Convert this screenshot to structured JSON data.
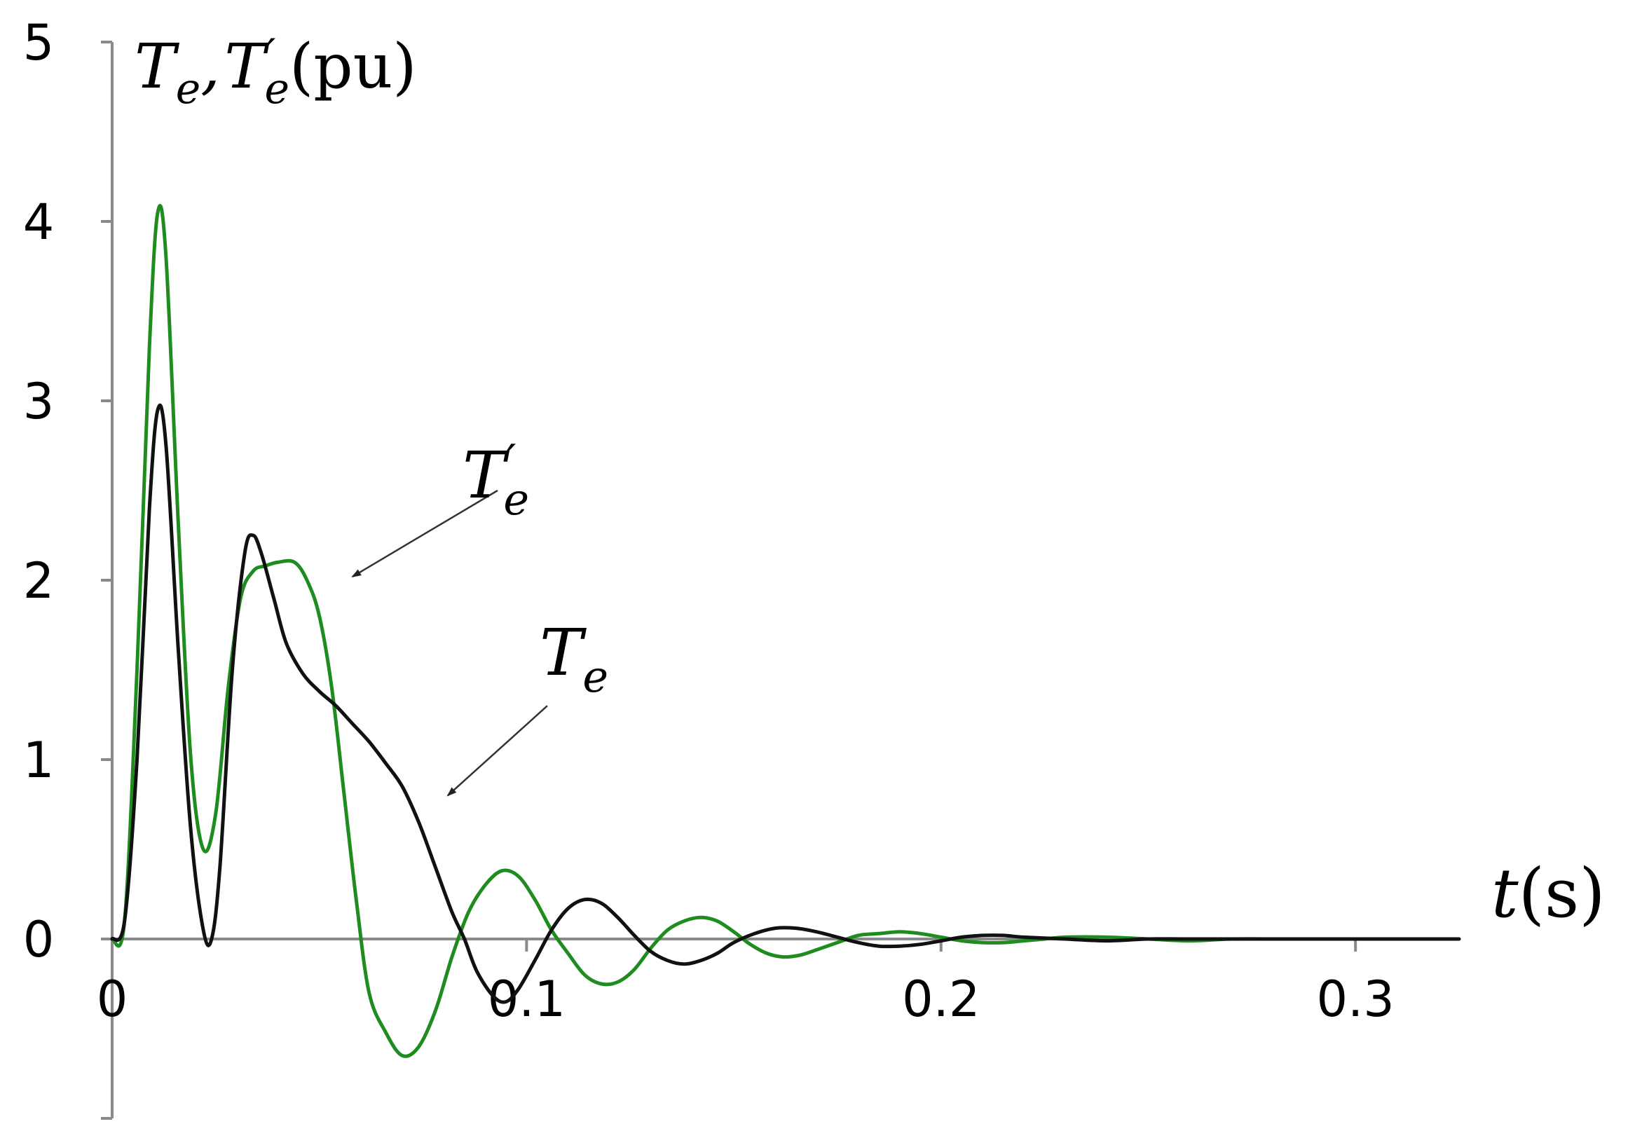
{
  "chart_data": {
    "type": "line",
    "title": "",
    "ylabel": {
      "main": "T",
      "sub1": "e",
      "sep": ",",
      "main2": "T",
      "prime": "′",
      "sub2": "e",
      "unit": "(pu)"
    },
    "xlabel": {
      "main": "t",
      "unit": "(s)"
    },
    "xlim": [
      0,
      0.325
    ],
    "ylim": [
      -1,
      5
    ],
    "x_ticks": [
      {
        "value": 0,
        "label": "0"
      },
      {
        "value": 0.1,
        "label": "0.1"
      },
      {
        "value": 0.2,
        "label": "0.2"
      },
      {
        "value": 0.3,
        "label": "0.3"
      }
    ],
    "y_ticks": [
      {
        "value": 0,
        "label": "0"
      },
      {
        "value": 1,
        "label": "1"
      },
      {
        "value": 2,
        "label": "2"
      },
      {
        "value": 3,
        "label": "3"
      },
      {
        "value": 4,
        "label": "4"
      },
      {
        "value": 5,
        "label": "5"
      }
    ],
    "grid": false,
    "series": [
      {
        "id": "Te_prime",
        "color": "#1e8c1e",
        "points": [
          [
            0,
            0
          ],
          [
            0.003,
            0.1
          ],
          [
            0.006,
            1.5
          ],
          [
            0.009,
            3.3
          ],
          [
            0.011,
            4.05
          ],
          [
            0.013,
            3.8
          ],
          [
            0.016,
            2.3
          ],
          [
            0.019,
            1.0
          ],
          [
            0.022,
            0.5
          ],
          [
            0.025,
            0.7
          ],
          [
            0.028,
            1.4
          ],
          [
            0.031,
            1.9
          ],
          [
            0.034,
            2.05
          ],
          [
            0.037,
            2.08
          ],
          [
            0.04,
            2.1
          ],
          [
            0.044,
            2.1
          ],
          [
            0.047,
            2.0
          ],
          [
            0.05,
            1.8
          ],
          [
            0.053,
            1.4
          ],
          [
            0.056,
            0.8
          ],
          [
            0.059,
            0.2
          ],
          [
            0.062,
            -0.3
          ],
          [
            0.066,
            -0.52
          ],
          [
            0.07,
            -0.65
          ],
          [
            0.074,
            -0.6
          ],
          [
            0.078,
            -0.4
          ],
          [
            0.082,
            -0.1
          ],
          [
            0.086,
            0.15
          ],
          [
            0.09,
            0.3
          ],
          [
            0.094,
            0.38
          ],
          [
            0.098,
            0.35
          ],
          [
            0.102,
            0.22
          ],
          [
            0.106,
            0.05
          ],
          [
            0.11,
            -0.08
          ],
          [
            0.114,
            -0.2
          ],
          [
            0.118,
            -0.25
          ],
          [
            0.122,
            -0.24
          ],
          [
            0.126,
            -0.17
          ],
          [
            0.13,
            -0.05
          ],
          [
            0.134,
            0.05
          ],
          [
            0.138,
            0.1
          ],
          [
            0.142,
            0.12
          ],
          [
            0.146,
            0.1
          ],
          [
            0.15,
            0.04
          ],
          [
            0.154,
            -0.03
          ],
          [
            0.158,
            -0.08
          ],
          [
            0.162,
            -0.1
          ],
          [
            0.166,
            -0.09
          ],
          [
            0.17,
            -0.06
          ],
          [
            0.175,
            -0.02
          ],
          [
            0.18,
            0.02
          ],
          [
            0.185,
            0.03
          ],
          [
            0.19,
            0.04
          ],
          [
            0.195,
            0.03
          ],
          [
            0.2,
            0.01
          ],
          [
            0.205,
            -0.01
          ],
          [
            0.21,
            -0.02
          ],
          [
            0.215,
            -0.02
          ],
          [
            0.22,
            -0.01
          ],
          [
            0.225,
            0.0
          ],
          [
            0.23,
            0.01
          ],
          [
            0.24,
            0.01
          ],
          [
            0.25,
            0.0
          ],
          [
            0.26,
            -0.01
          ],
          [
            0.27,
            0.0
          ],
          [
            0.28,
            0.0
          ],
          [
            0.3,
            0.0
          ],
          [
            0.325,
            0.0
          ]
        ]
      },
      {
        "id": "Te",
        "color": "#111111",
        "points": [
          [
            0,
            0
          ],
          [
            0.003,
            0.1
          ],
          [
            0.006,
            1.0
          ],
          [
            0.009,
            2.4
          ],
          [
            0.011,
            2.95
          ],
          [
            0.013,
            2.75
          ],
          [
            0.016,
            1.6
          ],
          [
            0.019,
            0.6
          ],
          [
            0.022,
            0.05
          ],
          [
            0.024,
            0.0
          ],
          [
            0.026,
            0.4
          ],
          [
            0.029,
            1.5
          ],
          [
            0.032,
            2.15
          ],
          [
            0.034,
            2.25
          ],
          [
            0.036,
            2.15
          ],
          [
            0.039,
            1.9
          ],
          [
            0.042,
            1.65
          ],
          [
            0.046,
            1.48
          ],
          [
            0.05,
            1.38
          ],
          [
            0.054,
            1.3
          ],
          [
            0.058,
            1.2
          ],
          [
            0.062,
            1.1
          ],
          [
            0.066,
            0.98
          ],
          [
            0.07,
            0.85
          ],
          [
            0.074,
            0.65
          ],
          [
            0.078,
            0.4
          ],
          [
            0.082,
            0.15
          ],
          [
            0.085,
            0.0
          ],
          [
            0.088,
            -0.18
          ],
          [
            0.092,
            -0.32
          ],
          [
            0.095,
            -0.35
          ],
          [
            0.098,
            -0.28
          ],
          [
            0.102,
            -0.12
          ],
          [
            0.106,
            0.05
          ],
          [
            0.11,
            0.17
          ],
          [
            0.114,
            0.22
          ],
          [
            0.118,
            0.2
          ],
          [
            0.122,
            0.12
          ],
          [
            0.126,
            0.02
          ],
          [
            0.13,
            -0.07
          ],
          [
            0.134,
            -0.12
          ],
          [
            0.138,
            -0.14
          ],
          [
            0.142,
            -0.12
          ],
          [
            0.146,
            -0.08
          ],
          [
            0.15,
            -0.02
          ],
          [
            0.155,
            0.03
          ],
          [
            0.16,
            0.06
          ],
          [
            0.165,
            0.06
          ],
          [
            0.17,
            0.04
          ],
          [
            0.175,
            0.01
          ],
          [
            0.18,
            -0.02
          ],
          [
            0.185,
            -0.04
          ],
          [
            0.19,
            -0.04
          ],
          [
            0.195,
            -0.03
          ],
          [
            0.2,
            -0.01
          ],
          [
            0.205,
            0.01
          ],
          [
            0.21,
            0.02
          ],
          [
            0.215,
            0.02
          ],
          [
            0.22,
            0.01
          ],
          [
            0.23,
            0.0
          ],
          [
            0.24,
            -0.01
          ],
          [
            0.25,
            0.0
          ],
          [
            0.26,
            0.0
          ],
          [
            0.28,
            0.0
          ],
          [
            0.3,
            0.0
          ],
          [
            0.325,
            0.0
          ]
        ]
      }
    ],
    "annotations": [
      {
        "id": "Te_prime_label",
        "main": "T",
        "prime": "′",
        "sub": "e",
        "arrow_from": [
          0.093,
          2.5
        ],
        "arrow_to": [
          0.058,
          2.02
        ]
      },
      {
        "id": "Te_label",
        "main": "T",
        "sub": "e",
        "arrow_from": [
          0.105,
          1.3
        ],
        "arrow_to": [
          0.081,
          0.8
        ]
      }
    ]
  }
}
